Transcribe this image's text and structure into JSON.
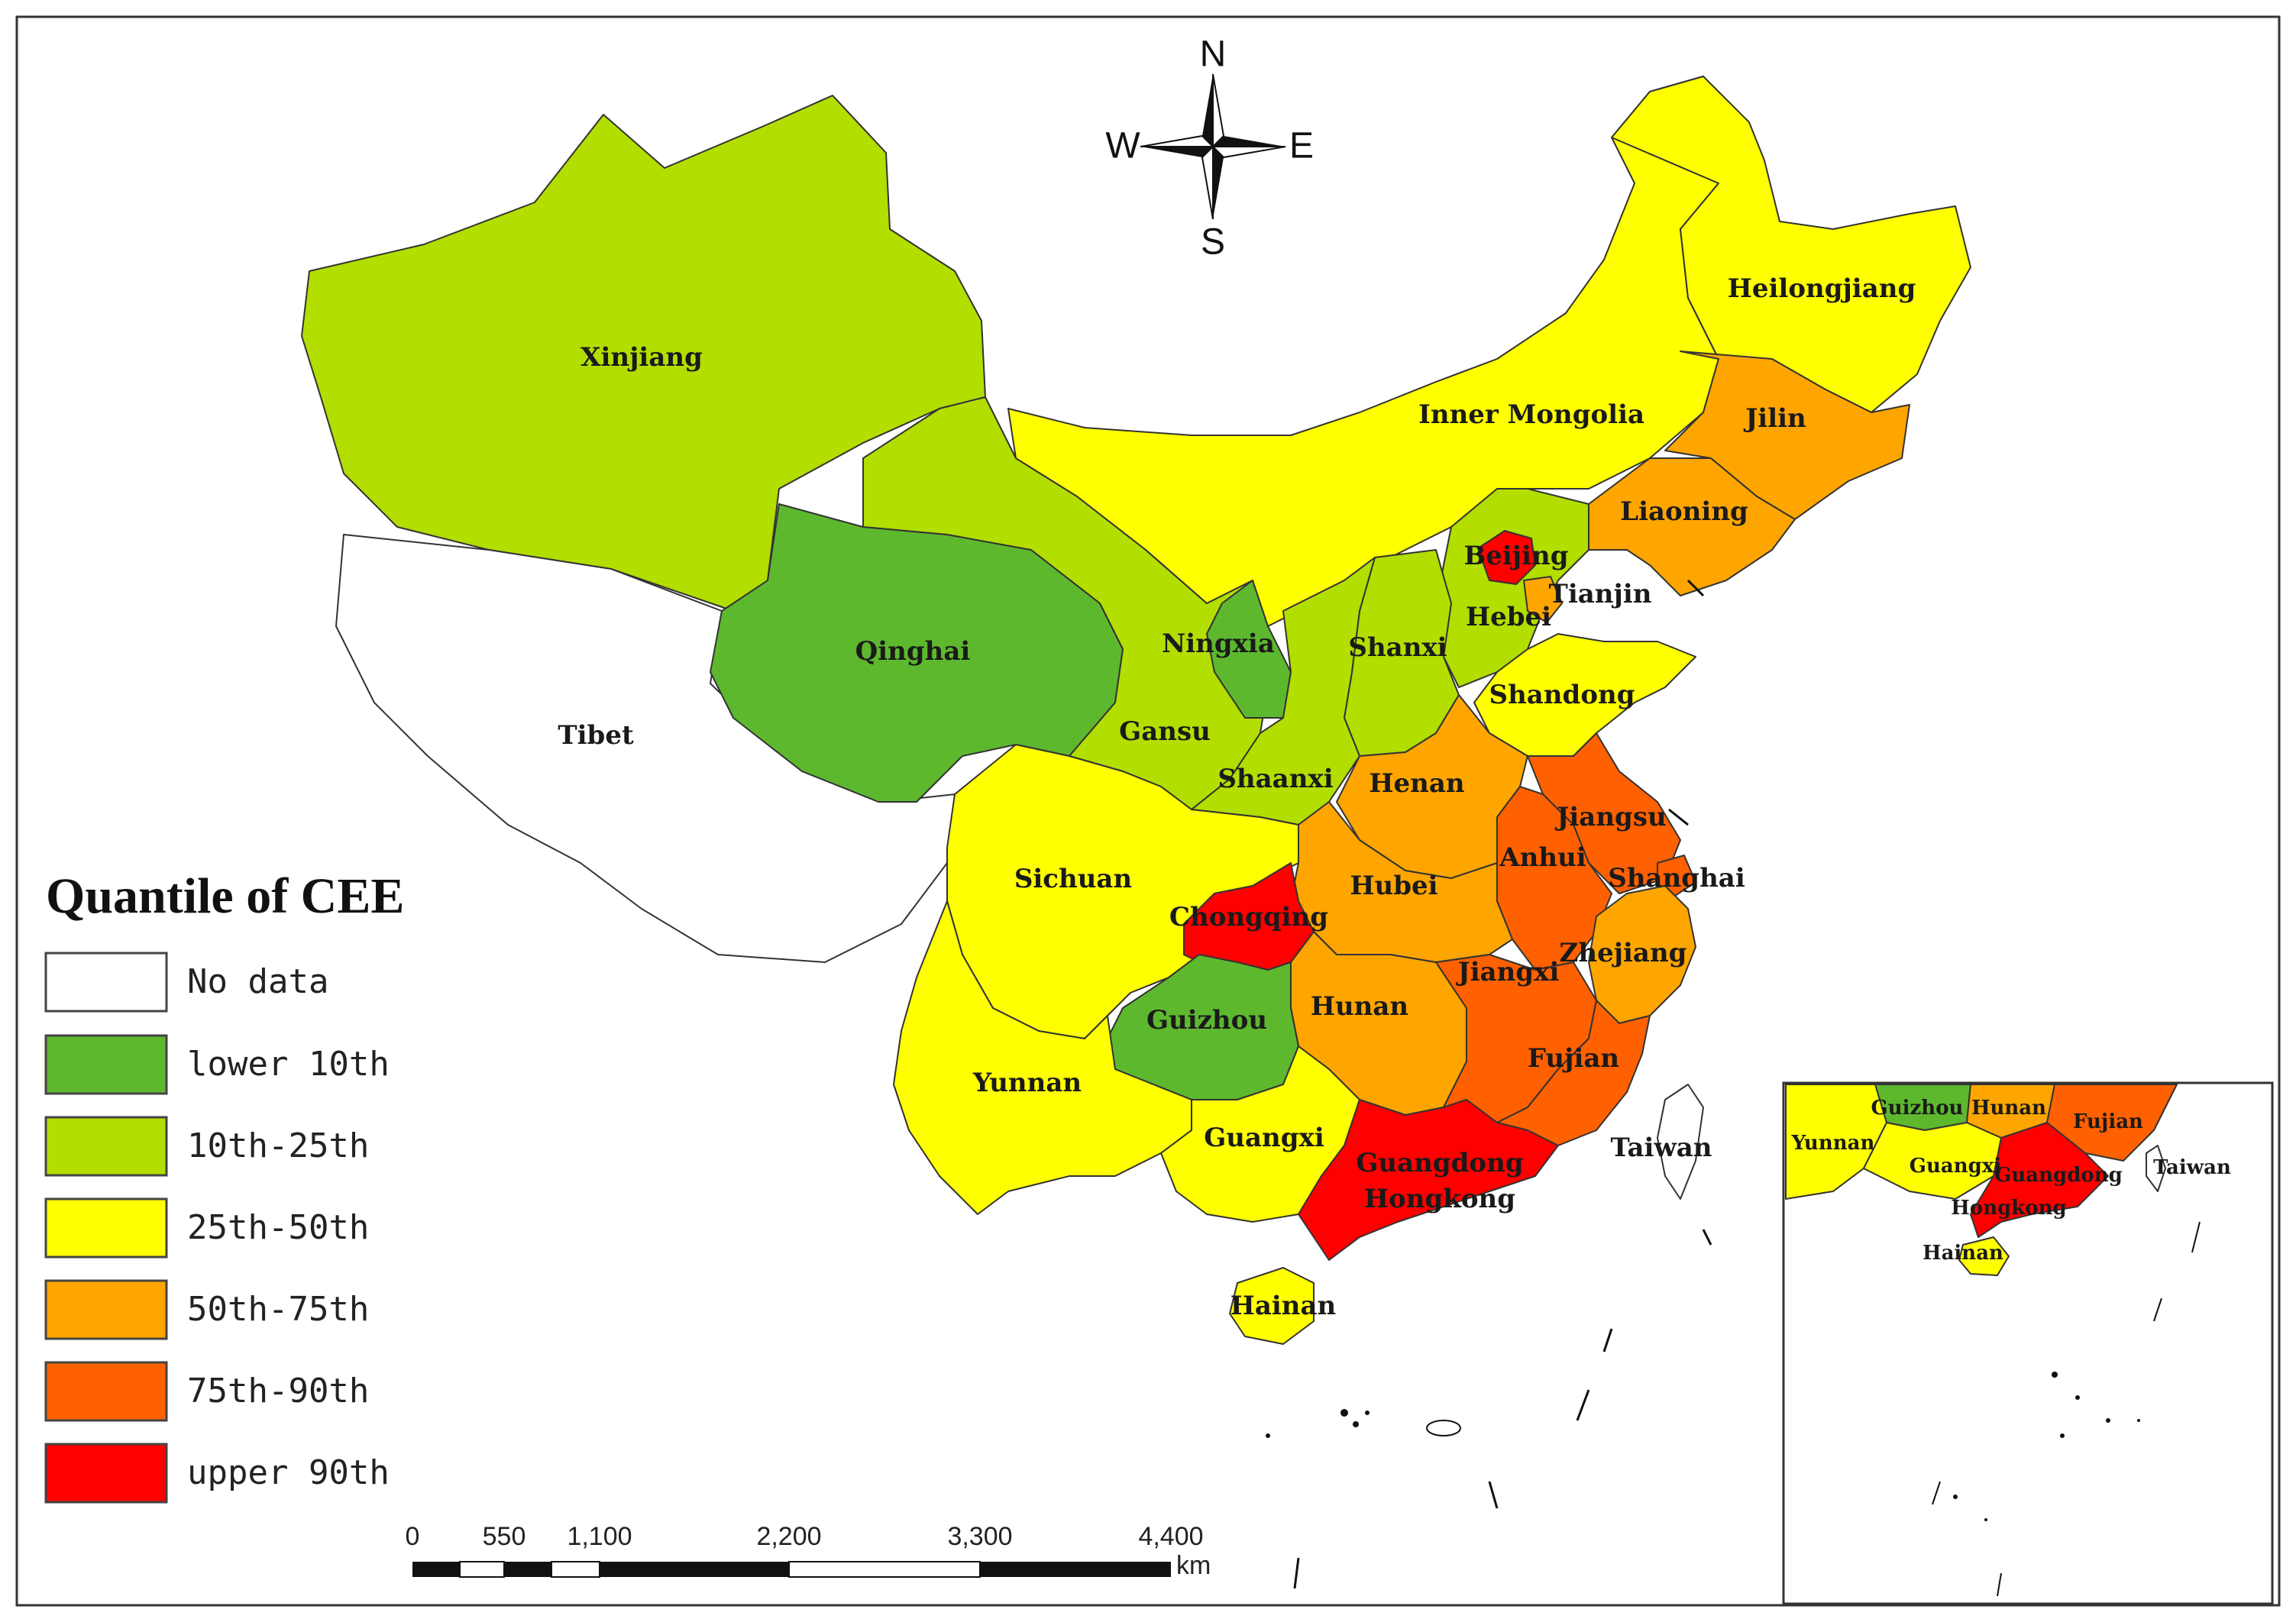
{
  "colors": {
    "no_data": "#ffffff",
    "lower_10th": "#5db82e",
    "p10_25": "#b2de00",
    "p25_50": "#ffff00",
    "p50_75": "#ffa500",
    "p75_90": "#ff6000",
    "upper_90th": "#ff0000",
    "border": "#333333"
  },
  "compass": {
    "n": "N",
    "s": "S",
    "e": "E",
    "w": "W"
  },
  "legend": {
    "title": "Quantile of CEE",
    "items": [
      {
        "label": "No data",
        "color": "#ffffff"
      },
      {
        "label": "lower 10th",
        "color": "#5db82e"
      },
      {
        "label": "10th-25th",
        "color": "#b2de00"
      },
      {
        "label": "25th-50th",
        "color": "#ffff00"
      },
      {
        "label": "50th-75th",
        "color": "#ffa500"
      },
      {
        "label": "75th-90th",
        "color": "#ff6000"
      },
      {
        "label": "upper 90th",
        "color": "#ff0000"
      }
    ]
  },
  "scale_bar": {
    "ticks": [
      "0",
      "550",
      "1,100",
      "2,200",
      "3,300",
      "4,400"
    ],
    "unit": "km"
  },
  "provinces": {
    "xinjiang": {
      "label": "Xinjiang",
      "class": "10th-25th"
    },
    "tibet": {
      "label": "Tibet",
      "class": "No data"
    },
    "qinghai": {
      "label": "Qinghai",
      "class": "lower 10th"
    },
    "gansu": {
      "label": "Gansu",
      "class": "10th-25th"
    },
    "ningxia": {
      "label": "Ningxia",
      "class": "lower 10th"
    },
    "inner_mongolia": {
      "label": "Inner Mongolia",
      "class": "25th-50th"
    },
    "heilongjiang": {
      "label": "Heilongjiang",
      "class": "25th-50th"
    },
    "jilin": {
      "label": "Jilin",
      "class": "50th-75th"
    },
    "liaoning": {
      "label": "Liaoning",
      "class": "50th-75th"
    },
    "beijing": {
      "label": "Beijing",
      "class": "upper 90th"
    },
    "tianjin": {
      "label": "Tianjin",
      "class": "50th-75th"
    },
    "hebei": {
      "label": "Hebei",
      "class": "10th-25th"
    },
    "shanxi": {
      "label": "Shanxi",
      "class": "10th-25th"
    },
    "shaanxi": {
      "label": "Shaanxi",
      "class": "10th-25th"
    },
    "shandong": {
      "label": "Shandong",
      "class": "25th-50th"
    },
    "henan": {
      "label": "Henan",
      "class": "50th-75th"
    },
    "jiangsu": {
      "label": "Jiangsu",
      "class": "75th-90th"
    },
    "anhui": {
      "label": "Anhui",
      "class": "75th-90th"
    },
    "shanghai": {
      "label": "Shanghai",
      "class": "75th-90th"
    },
    "hubei": {
      "label": "Hubei",
      "class": "50th-75th"
    },
    "sichuan": {
      "label": "Sichuan",
      "class": "25th-50th"
    },
    "chongqing": {
      "label": "Chongqing",
      "class": "upper 90th"
    },
    "zhejiang": {
      "label": "Zhejiang",
      "class": "50th-75th"
    },
    "hunan": {
      "label": "Hunan",
      "class": "50th-75th"
    },
    "jiangxi": {
      "label": "Jiangxi",
      "class": "75th-90th"
    },
    "guizhou": {
      "label": "Guizhou",
      "class": "lower 10th"
    },
    "yunnan": {
      "label": "Yunnan",
      "class": "25th-50th"
    },
    "fujian": {
      "label": "Fujian",
      "class": "75th-90th"
    },
    "guangxi": {
      "label": "Guangxi",
      "class": "25th-50th"
    },
    "guangdong": {
      "label": "Guangdong",
      "class": "upper 90th"
    },
    "hongkong": {
      "label": "Hongkong",
      "class": "upper 90th"
    },
    "taiwan": {
      "label": "Taiwan",
      "class": "No data"
    },
    "hainan": {
      "label": "Hainan",
      "class": "25th-50th"
    }
  },
  "inset": {
    "labels": {
      "guizhou": "Guizhou",
      "hunan": "Hunan",
      "fujian": "Fujian",
      "yunnan": "Yunnan",
      "guangxi": "Guangxi",
      "guangdong": "Guangdong",
      "taiwan": "Taiwan",
      "hongkong": "Hongkong",
      "hainan": "Hainan"
    }
  }
}
